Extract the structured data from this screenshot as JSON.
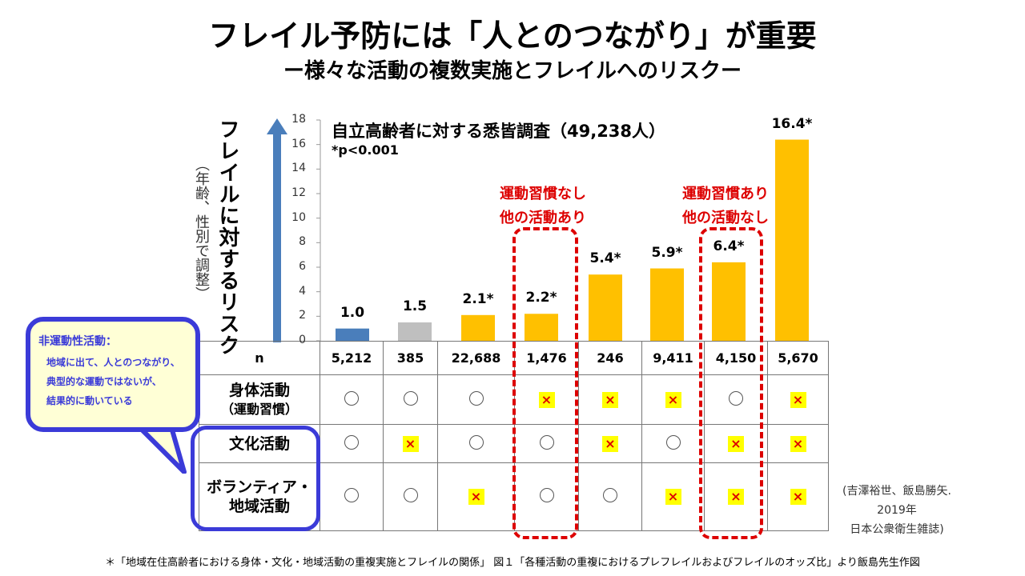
{
  "title": "フレイル予防には「人とのつながり」が重要",
  "subtitle": "ー様々な活動の複数実施とフレイルへのリスクー",
  "chart_data": {
    "type": "bar",
    "title": "自立高齢者に対する悉皆調査（49,238人）",
    "note": "*p<0.001",
    "ylabel": "フレイルに対するリスク",
    "ylabel_note": "（年齢、性別で調整）",
    "ylim": [
      0,
      18
    ],
    "yticks": [
      0,
      2,
      4,
      6,
      8,
      10,
      12,
      14,
      16,
      18
    ],
    "values": [
      1.0,
      1.5,
      2.1,
      2.2,
      5.4,
      5.9,
      6.4,
      16.4
    ],
    "labels": [
      "1.0",
      "1.5",
      "2.1*",
      "2.2*",
      "5.4*",
      "5.9*",
      "6.4*",
      "16.4*"
    ],
    "colors": [
      "#4a7ebb",
      "#bfbfbf",
      "#ffc000",
      "#ffc000",
      "#ffc000",
      "#ffc000",
      "#ffc000",
      "#ffc000"
    ],
    "grid": false
  },
  "callouts": [
    {
      "line1": "運動習慣なし",
      "line2": "他の活動あり",
      "column": 4
    },
    {
      "line1": "運動習慣あり",
      "line2": "他の活動なし",
      "column": 7
    }
  ],
  "table": {
    "n_label": "n",
    "n": [
      "5,212",
      "385",
      "22,688",
      "1,476",
      "246",
      "9,411",
      "4,150",
      "5,670"
    ],
    "rows": [
      {
        "label": "身体活動",
        "sublabel": "（運動習慣）",
        "marks": [
          "○",
          "○",
          "○",
          "×",
          "×",
          "×",
          "○",
          "×"
        ]
      },
      {
        "label": "文化活動",
        "sublabel": "",
        "marks": [
          "○",
          "×",
          "○",
          "○",
          "×",
          "○",
          "×",
          "×"
        ]
      },
      {
        "label": "ボランティア・",
        "sublabel": "地域活動",
        "marks": [
          "○",
          "○",
          "×",
          "○",
          "○",
          "×",
          "×",
          "×"
        ]
      }
    ]
  },
  "bubble": {
    "title": "非運動性活動：",
    "lines": [
      "地域に出て、人とのつながり、",
      "典型的な運動ではないが、",
      "結果的に動いている"
    ]
  },
  "reference": [
    "(吉澤裕世、飯島勝矢.",
    "2019年",
    "日本公衆衛生雑誌)"
  ],
  "footnote": "＊「地域在住高齢者における身体・文化・地域活動の重複実施とフレイルの関係」 図１「各種活動の重複におけるプレフレイルおよびフレイルのオッズ比」より飯島先生作図",
  "colors": {
    "accent_blue": "#3b3bd8",
    "callout_red": "#dd0000",
    "highlight": "#ffff00"
  }
}
